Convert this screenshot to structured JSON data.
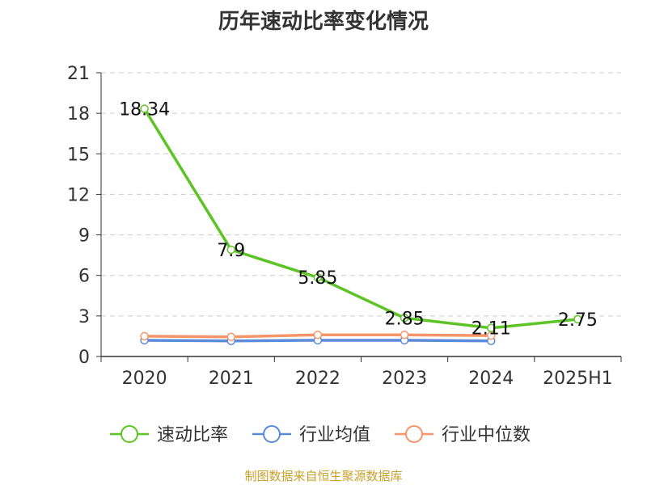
{
  "chart_data": {
    "type": "line",
    "title": "历年速动比率变化情况",
    "categories": [
      "2020",
      "2021",
      "2022",
      "2023",
      "2024",
      "2025H1"
    ],
    "ylim": [
      0,
      21
    ],
    "yticks": [
      0,
      3,
      6,
      9,
      12,
      15,
      18,
      21
    ],
    "grid": true,
    "legend_position": "bottom",
    "series": [
      {
        "name": "速动比率",
        "color": "#5cc424",
        "values": [
          18.34,
          7.9,
          5.85,
          2.85,
          2.11,
          2.75
        ],
        "labels": [
          "18.34",
          "7.9",
          "5.85",
          "2.85",
          "2.11",
          "2.75"
        ]
      },
      {
        "name": "行业均值",
        "color": "#5b8ad8",
        "values": [
          1.2,
          1.15,
          1.2,
          1.2,
          1.15,
          null
        ]
      },
      {
        "name": "行业中位数",
        "color": "#f5956a",
        "values": [
          1.5,
          1.45,
          1.6,
          1.6,
          1.55,
          null
        ]
      }
    ]
  },
  "footer": {
    "source": "制图数据来自恒生聚源数据库"
  }
}
